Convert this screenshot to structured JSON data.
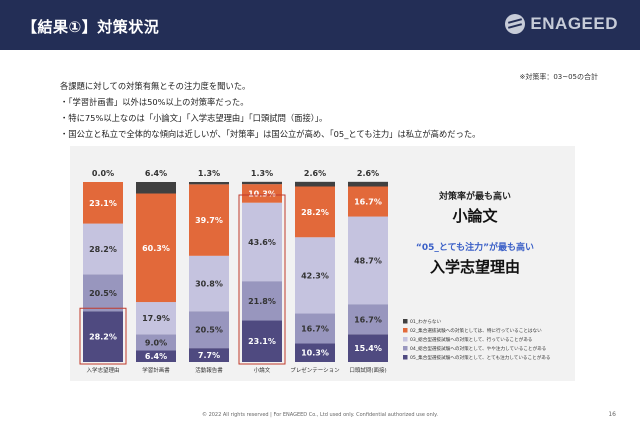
{
  "header": {
    "title": "【結果①】対策状況",
    "brand": "ENAGEED"
  },
  "note": "※対策率：03~05の合計",
  "bullets": [
    "各課題に対しての対策有無とその注力度を聞いた。",
    "・「学習計画書」以外は50%以上の対策率だった。",
    "・特に75%以上なのは「小論文」「入学志望理由」「口頭試問（面接）」。",
    "・国公立と私立で全体的な傾向は近しいが、「対策率」は国公立が高め、「05_とても注力」は私立が高めだった。"
  ],
  "callouts": {
    "line1": "対策率が最も高い",
    "line2": "小論文",
    "line3": "“05_とても注力”が最も高い",
    "line4": "入学志望理由"
  },
  "colors": {
    "c01": "#404040",
    "c02": "#e2693a",
    "c03": "#c5c3df",
    "c04": "#9896be",
    "c05": "#4f4a80",
    "highlight": "#c0392b",
    "accent": "#3a5fc7"
  },
  "footer": {
    "copyright": "© 2022 All rights reserved | For ENAGEED Co., Ltd used only. Confidential authorized use only.",
    "page": "16"
  },
  "chart_data": {
    "type": "bar",
    "stacked": true,
    "ylim": [
      0,
      100
    ],
    "categories": [
      "入学志望理由",
      "学習計画書",
      "活動報告書",
      "小論文",
      "プレゼンテーション",
      "口頭試問(面接)"
    ],
    "highlighted": [
      "入学志望理由",
      "小論文"
    ],
    "series": [
      {
        "key": "c05",
        "name": "05_集合型選抜試験への対策として、とても注力していることがある",
        "values": [
          28.2,
          6.4,
          7.7,
          23.1,
          10.3,
          15.4
        ]
      },
      {
        "key": "c04",
        "name": "04_総合型選抜試験への対策として、やや注力していることがある",
        "values": [
          20.5,
          9.0,
          20.5,
          21.8,
          16.7,
          16.7
        ]
      },
      {
        "key": "c03",
        "name": "03_総合型選抜試験への対策として、行っていることがある",
        "values": [
          28.2,
          17.9,
          30.8,
          43.6,
          42.3,
          48.7
        ]
      },
      {
        "key": "c02",
        "name": "02_集合選抜試験への対策としては、特に行っていることはない",
        "values": [
          23.1,
          60.3,
          39.7,
          10.3,
          28.2,
          16.7
        ]
      },
      {
        "key": "c01",
        "name": "01_わからない",
        "values": [
          0.0,
          6.4,
          1.3,
          1.3,
          2.6,
          2.6
        ]
      }
    ],
    "legend_order": [
      "c01",
      "c02",
      "c03",
      "c04",
      "c05"
    ],
    "legend_position": "bottom-right"
  }
}
